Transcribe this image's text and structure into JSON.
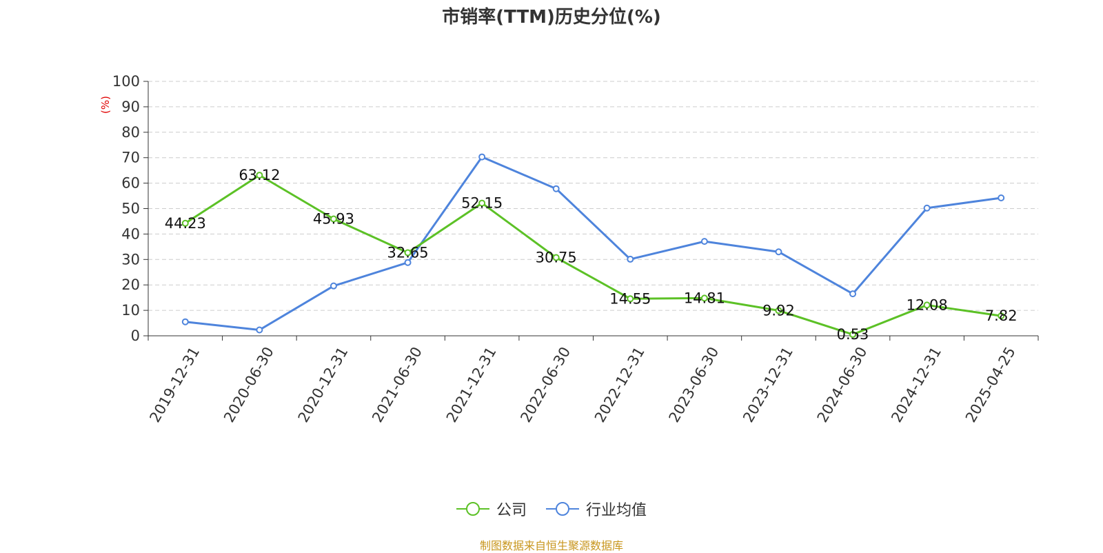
{
  "chart_data": {
    "type": "line",
    "title": "市销率(TTM)历史分位(%)",
    "ylabel": "(%)",
    "ylim": [
      0,
      100
    ],
    "yticks": [
      0,
      10,
      20,
      30,
      40,
      50,
      60,
      70,
      80,
      90,
      100
    ],
    "grid": true,
    "legend_position": "bottom-center",
    "categories": [
      "2019-12-31",
      "2020-06-30",
      "2020-12-31",
      "2021-06-30",
      "2021-12-31",
      "2022-06-30",
      "2022-12-31",
      "2023-06-30",
      "2023-12-31",
      "2024-06-30",
      "2024-12-31",
      "2025-04-25"
    ],
    "series": [
      {
        "name": "公司",
        "color": "#5cc126",
        "show_labels": true,
        "values": [
          44.23,
          63.12,
          45.93,
          32.65,
          52.15,
          30.75,
          14.55,
          14.81,
          9.92,
          0.53,
          12.08,
          7.82
        ]
      },
      {
        "name": "行业均值",
        "color": "#4e84dc",
        "show_labels": false,
        "values": [
          5.5,
          2.3,
          19.6,
          28.8,
          70.3,
          57.8,
          30.1,
          37.1,
          33.0,
          16.5,
          50.2,
          54.2
        ]
      }
    ]
  },
  "ylabel_color": "#e00000",
  "source_note": "制图数据来自恒生聚源数据库",
  "source_note_color": "#c8961e"
}
